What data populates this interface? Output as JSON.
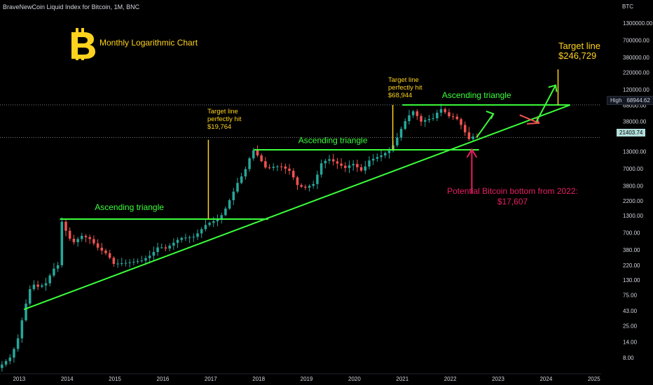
{
  "header": {
    "title": "BraveNewCoin Liquid Index for Bitcoin, 1M, BNC",
    "axis_unit": "BTC",
    "chart_label": "Monthly Logarithmic Chart"
  },
  "price_scale": {
    "ticks": [
      "1300000.00",
      "700000.00",
      "380000.00",
      "220000.00",
      "120000.00",
      "68000.00",
      "38000.00",
      "13000.00",
      "7000.00",
      "3800.00",
      "2200.00",
      "1300.00",
      "700.00",
      "380.00",
      "220.00",
      "130.00",
      "75.00",
      "43.00",
      "25.00",
      "14.00",
      "8.00"
    ],
    "high_label": "High",
    "high_value": "68944.62",
    "current_value": "21403.74"
  },
  "time_axis": {
    "ticks": [
      "2013",
      "2014",
      "2015",
      "2016",
      "2017",
      "2018",
      "2019",
      "2020",
      "2021",
      "2022",
      "2023",
      "2024",
      "2025"
    ]
  },
  "colors": {
    "up": "#26a69a",
    "down": "#ef5350",
    "trend": "#3bff3b",
    "target": "#ffd21e",
    "bottom": "#e91e63"
  },
  "annotations": {
    "tri1": "Ascending triangle",
    "tri2": "Ascending triangle",
    "tri3": "Ascending triangle",
    "target1": [
      "Target line",
      "perfectly hit",
      "$19,764"
    ],
    "target2": [
      "Target line",
      "perfectly hit",
      "$68,944"
    ],
    "target3": [
      "Target line",
      "$246,729"
    ],
    "bottom": [
      "Potential Bitcoin bottom from 2022:",
      "$17,607"
    ]
  },
  "chart_data": {
    "type": "candlestick",
    "scale": "log",
    "x_unit": "year",
    "xlim": [
      2012.6,
      2025.15
    ],
    "ylim": [
      5.2,
      1800000
    ],
    "ticks_y": [
      1300000,
      700000,
      380000,
      220000,
      120000,
      68000,
      38000,
      13000,
      7000,
      3800,
      2200,
      1300,
      700,
      380,
      220,
      130,
      75,
      43,
      25,
      14,
      8
    ],
    "ticks_x": [
      2013,
      2014,
      2015,
      2016,
      2017,
      2018,
      2019,
      2020,
      2021,
      2022,
      2023,
      2024,
      2025
    ],
    "anchors": [
      [
        2012.6,
        5.5
      ],
      [
        2012.85,
        8
      ],
      [
        2013.0,
        14
      ],
      [
        2013.15,
        45
      ],
      [
        2013.3,
        115
      ],
      [
        2013.45,
        100
      ],
      [
        2013.6,
        115
      ],
      [
        2013.75,
        190
      ],
      [
        2013.85,
        220
      ],
      [
        2013.92,
        1100
      ],
      [
        2014.0,
        800
      ],
      [
        2014.15,
        480
      ],
      [
        2014.35,
        630
      ],
      [
        2014.5,
        580
      ],
      [
        2014.7,
        400
      ],
      [
        2014.9,
        320
      ],
      [
        2015.0,
        230
      ],
      [
        2015.3,
        240
      ],
      [
        2015.6,
        260
      ],
      [
        2015.8,
        320
      ],
      [
        2015.95,
        430
      ],
      [
        2016.1,
        400
      ],
      [
        2016.4,
        580
      ],
      [
        2016.7,
        610
      ],
      [
        2016.95,
        960
      ],
      [
        2017.15,
        1100
      ],
      [
        2017.3,
        1400
      ],
      [
        2017.45,
        2400
      ],
      [
        2017.6,
        4200
      ],
      [
        2017.75,
        6400
      ],
      [
        2017.92,
        14000
      ],
      [
        2018.05,
        10500
      ],
      [
        2018.2,
        7000
      ],
      [
        2018.35,
        7500
      ],
      [
        2018.5,
        7700
      ],
      [
        2018.7,
        6400
      ],
      [
        2018.85,
        3900
      ],
      [
        2019.0,
        3500
      ],
      [
        2019.2,
        4100
      ],
      [
        2019.35,
        8500
      ],
      [
        2019.5,
        10000
      ],
      [
        2019.7,
        8300
      ],
      [
        2019.85,
        7200
      ],
      [
        2020.0,
        8500
      ],
      [
        2020.2,
        6400
      ],
      [
        2020.35,
        9400
      ],
      [
        2020.6,
        11300
      ],
      [
        2020.8,
        13800
      ],
      [
        2020.9,
        19000
      ],
      [
        2021.05,
        33000
      ],
      [
        2021.15,
        45000
      ],
      [
        2021.3,
        58000
      ],
      [
        2021.4,
        37000
      ],
      [
        2021.55,
        41000
      ],
      [
        2021.7,
        43000
      ],
      [
        2021.82,
        61000
      ],
      [
        2021.9,
        57000
      ],
      [
        2022.0,
        46000
      ],
      [
        2022.15,
        45000
      ],
      [
        2022.3,
        31000
      ],
      [
        2022.42,
        20000
      ],
      [
        2022.55,
        23000
      ],
      [
        2022.62,
        21400
      ]
    ],
    "target_year": 2024.25
  }
}
